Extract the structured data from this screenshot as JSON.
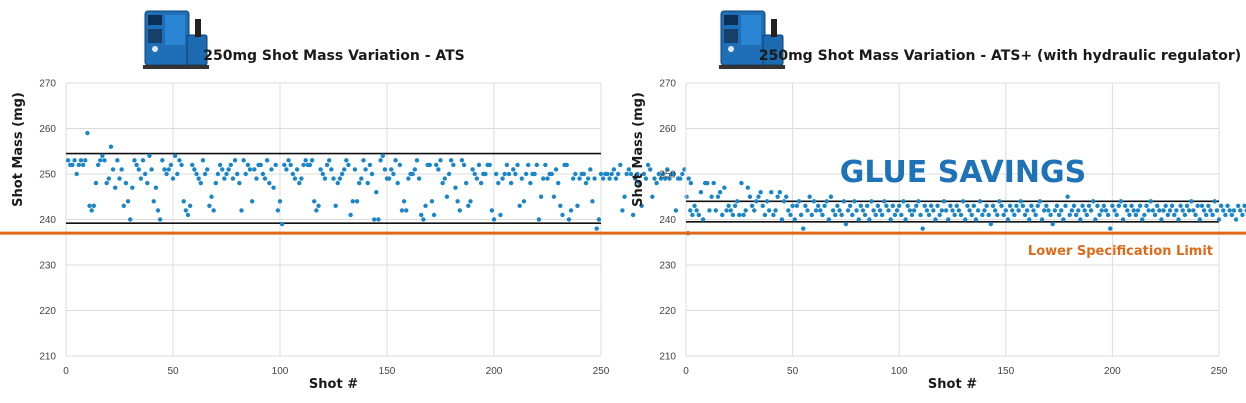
{
  "colors": {
    "point": "#1a86c8",
    "limit_line": "#e06a1b",
    "spec_band": "#111111",
    "grid": "#dcdcdc",
    "glue_savings": "#1d72b8",
    "machine_body": "#1f6fb8"
  },
  "lsl_label": "Lower Specification Limit",
  "lsl_value": 237,
  "glue_savings": "GLUE SAVINGS",
  "chart_data": [
    {
      "type": "scatter",
      "title": "250mg Shot Mass Variation - ATS",
      "xlabel": "Shot #",
      "ylabel": "Shot Mass (mg)",
      "xlim": [
        0,
        250
      ],
      "ylim": [
        210,
        270
      ],
      "xticks": [
        0,
        50,
        100,
        150,
        200,
        250
      ],
      "yticks": [
        210,
        220,
        230,
        240,
        250,
        260,
        270
      ],
      "grid": true,
      "upper_band": 254.5,
      "lower_band": 239.2,
      "y": [
        253,
        252,
        252,
        253,
        250,
        252,
        253,
        252,
        253,
        259,
        243,
        242,
        243,
        248,
        252,
        253,
        254,
        253,
        248,
        249,
        256,
        251,
        247,
        253,
        249,
        251,
        243,
        248,
        244,
        240,
        247,
        253,
        252,
        251,
        249,
        253,
        250,
        248,
        254,
        251,
        244,
        247,
        242,
        240,
        253,
        251,
        250,
        251,
        252,
        249,
        254,
        250,
        253,
        252,
        244,
        242,
        241,
        243,
        252,
        251,
        250,
        249,
        248,
        253,
        250,
        251,
        243,
        245,
        242,
        248,
        250,
        252,
        251,
        249,
        250,
        251,
        252,
        249,
        253,
        250,
        248,
        242,
        253,
        250,
        252,
        251,
        244,
        251,
        249,
        252,
        252,
        250,
        249,
        253,
        248,
        251,
        247,
        252,
        242,
        244,
        239,
        252,
        251,
        253,
        252,
        250,
        249,
        251,
        248,
        249,
        252,
        253,
        252,
        252,
        253,
        244,
        242,
        243,
        251,
        250,
        249,
        252,
        253,
        251,
        249,
        243,
        248,
        249,
        250,
        251,
        253,
        252,
        241,
        244,
        251,
        244,
        248,
        249,
        253,
        251,
        248,
        252,
        250,
        240,
        246,
        240,
        253,
        254,
        251,
        249,
        249,
        251,
        250,
        253,
        248,
        252,
        242,
        244,
        242,
        249,
        250,
        250,
        251,
        253,
        249,
        241,
        240,
        243,
        252,
        252,
        244,
        241,
        252,
        251,
        253,
        248,
        249,
        245,
        250,
        253,
        252,
        247,
        244,
        242,
        253,
        252,
        248,
        243,
        244,
        251,
        250,
        249,
        252,
        248,
        250,
        250,
        252,
        252,
        242,
        240,
        250,
        248,
        241,
        249,
        250,
        252,
        250,
        248,
        251,
        250,
        252,
        243,
        249,
        244,
        250,
        252,
        248,
        250,
        250,
        252,
        240,
        245,
        249,
        252,
        249,
        250,
        250,
        245,
        251,
        248,
        243,
        241,
        252,
        252,
        240,
        242,
        249,
        250,
        243,
        249,
        250,
        250,
        248,
        249,
        251,
        244,
        249,
        238,
        240,
        250,
        249,
        250,
        250,
        249,
        250,
        251,
        249,
        250,
        252,
        242,
        245,
        250,
        251,
        250,
        241,
        249,
        250,
        248,
        243,
        250,
        249,
        252,
        251,
        245,
        249,
        248,
        250,
        249,
        250,
        249,
        251,
        249,
        250,
        250,
        242,
        249,
        249,
        250,
        251,
        245,
        249,
        248
      ]
    },
    {
      "type": "scatter",
      "title": "250mg Shot Mass Variation - ATS+ (with hydraulic regulator)",
      "xlabel": "Shot #",
      "ylabel": "Shot Mass (mg)",
      "xlim": [
        0,
        250
      ],
      "ylim": [
        210,
        270
      ],
      "xticks": [
        0,
        50,
        100,
        150,
        200,
        250
      ],
      "yticks": [
        210,
        220,
        230,
        240,
        250,
        260,
        270
      ],
      "grid": true,
      "upper_band": 244,
      "lower_band": 239.5,
      "y": [
        237,
        242,
        241,
        243,
        242,
        241,
        246,
        240,
        248,
        248,
        242,
        245,
        248,
        242,
        245,
        246,
        241,
        247,
        242,
        243,
        242,
        241,
        243,
        244,
        241,
        248,
        241,
        242,
        247,
        245,
        243,
        242,
        244,
        245,
        246,
        243,
        241,
        244,
        242,
        246,
        241,
        242,
        245,
        246,
        240,
        244,
        245,
        242,
        241,
        243,
        240,
        243,
        244,
        241,
        238,
        243,
        242,
        245,
        241,
        244,
        242,
        243,
        242,
        241,
        243,
        244,
        240,
        245,
        242,
        241,
        243,
        242,
        241,
        244,
        239,
        242,
        243,
        241,
        244,
        242,
        240,
        243,
        242,
        241,
        243,
        240,
        244,
        242,
        241,
        243,
        242,
        241,
        244,
        243,
        242,
        240,
        243,
        241,
        242,
        243,
        241,
        244,
        240,
        243,
        242,
        241,
        242,
        243,
        244,
        241,
        238,
        243,
        242,
        241,
        243,
        242,
        240,
        243,
        241,
        242,
        244,
        242,
        240,
        243,
        242,
        241,
        243,
        242,
        241,
        244,
        240,
        243,
        242,
        241,
        243,
        240,
        242,
        244,
        241,
        242,
        243,
        241,
        239,
        243,
        242,
        241,
        244,
        243,
        241,
        242,
        240,
        243,
        242,
        241,
        243,
        242,
        244,
        243,
        241,
        242,
        240,
        243,
        242,
        241,
        243,
        244,
        240,
        242,
        243,
        242,
        241,
        239,
        242,
        243,
        241,
        242,
        240,
        243,
        245,
        241,
        242,
        243,
        241,
        242,
        240,
        243,
        242,
        241,
        243,
        242,
        244,
        240,
        243,
        241,
        242,
        243,
        242,
        241,
        238,
        243,
        242,
        241,
        243,
        244,
        240,
        243,
        242,
        241,
        243,
        242,
        241,
        242,
        243,
        240,
        241,
        243,
        242,
        244,
        242,
        241,
        243,
        242,
        240,
        242,
        243,
        241,
        242,
        243,
        241,
        242,
        240,
        243,
        242,
        241,
        243,
        242,
        244,
        242,
        241,
        243,
        240,
        243,
        242,
        241,
        243,
        242,
        241,
        244,
        242,
        240,
        243,
        242,
        241,
        243,
        242,
        241,
        242,
        240,
        243,
        242,
        241,
        243,
        242,
        244,
        241,
        243,
        242,
        241,
        240,
        243,
        242,
        241
      ]
    }
  ]
}
